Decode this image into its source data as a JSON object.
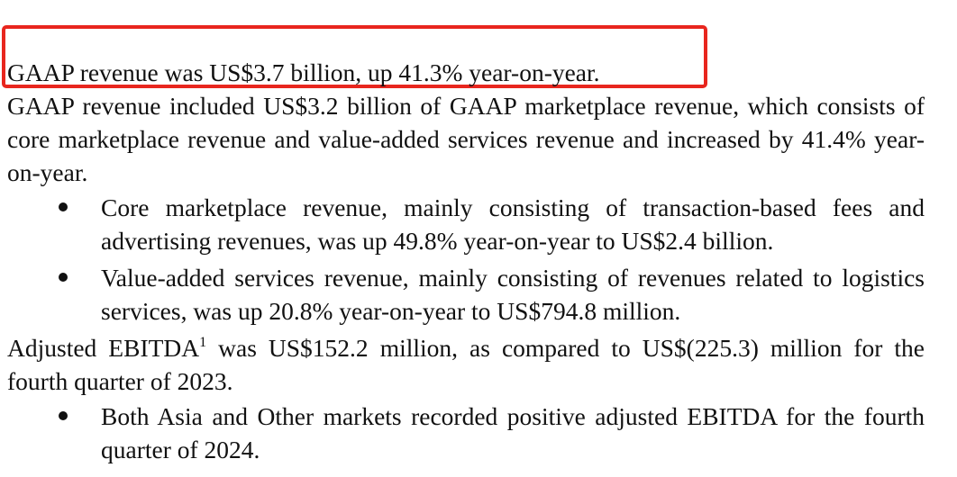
{
  "highlight": {
    "color": "#e8261e"
  },
  "p1": {
    "text": "GAAP revenue was US$3.7 billion, up 41.3% year-on-year."
  },
  "p2": {
    "text": "GAAP revenue included US$3.2 billion of GAAP marketplace revenue, which consists of core marketplace revenue and value-added services revenue and increased by 41.4% year-on-year."
  },
  "bullets1": [
    {
      "text": "Core marketplace revenue, mainly consisting of transaction-based fees and advertising revenues, was up 49.8% year-on-year to US$2.4 billion."
    },
    {
      "text": "Value-added services revenue, mainly consisting of revenues related to logistics services, was up 20.8% year-on-year to US$794.8 million."
    }
  ],
  "p3": {
    "prefix": "Adjusted EBITDA",
    "footnote": "1",
    "suffix": " was US$152.2 million, as compared to US$(225.3) million for the fourth quarter of 2023."
  },
  "bullets2": [
    {
      "text": "Both Asia and Other markets recorded positive adjusted EBITDA for the fourth quarter of 2024."
    }
  ]
}
